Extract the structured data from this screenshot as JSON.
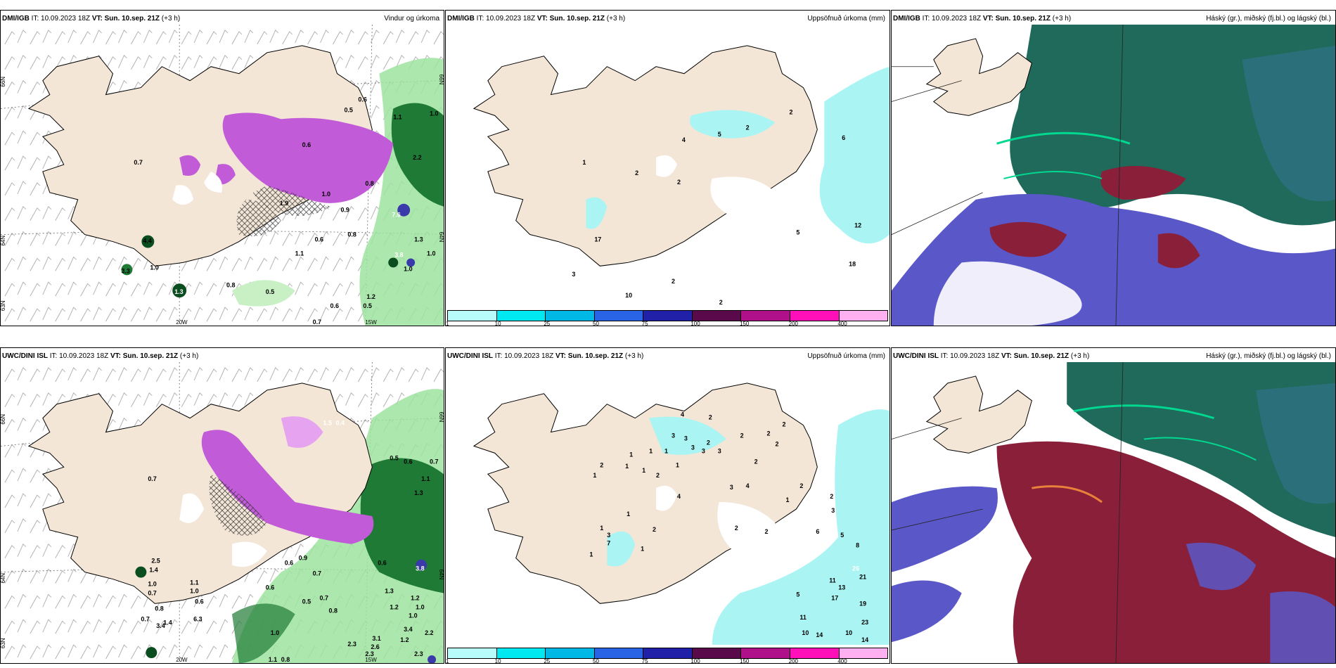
{
  "colors": {
    "land": "#f3e6d6",
    "land_light": "#f7ecdf",
    "precip_light_green": "#c9f0c5",
    "precip_green": "#6fcf78",
    "precip_dark_green": "#0a4d1e",
    "snow_magenta": "#c25bd8",
    "snow_light": "#e6a3f0",
    "accum_cyan": "#aaf5f3",
    "cloud_high_green": "#1f6a5a",
    "cloud_mid_red": "#8a1f3a",
    "cloud_low_blue": "#5a58c8"
  },
  "top_row": {
    "run_prefix": "DMI/IGB",
    "panels": [
      {
        "model": "DMI/IGB",
        "it_label": "IT:",
        "it": "10.09.2023 18Z",
        "vt_label": "VT:",
        "vt": "Sun. 10.sep. 21Z",
        "lead": "(+3 h)",
        "title": "Vindur og úrkoma",
        "lat_labels": [
          "66N",
          "64N",
          "63N"
        ],
        "lat_labels_right": [
          "66N",
          "64N"
        ],
        "lon_labels": [
          "20W",
          "15W"
        ],
        "values": [
          "0.6",
          "0.5",
          "1.1",
          "1.0",
          "0.7",
          "0.6",
          "0.9",
          "0.8",
          "2.2",
          "7.6",
          "1.3",
          "3.8",
          "1.0",
          "0.6",
          "1.2",
          "1.0",
          "4.4",
          "3.3",
          "1.0",
          "0.8",
          "0.5",
          "1.3",
          "0.6",
          "0.5",
          "0.7",
          "1.1",
          "1.0",
          "1.9",
          "0.8"
        ]
      },
      {
        "model": "DMI/IGB",
        "it_label": "IT:",
        "it": "10.09.2023 18Z",
        "vt_label": "VT:",
        "vt": "Sun. 10.sep. 21Z",
        "lead": "(+3 h)",
        "title": "Uppsöfnuð úrkoma (mm)",
        "values": [
          "2",
          "4",
          "5",
          "2",
          "1",
          "2",
          "2",
          "6",
          "17",
          "12",
          "5",
          "18",
          "3",
          "10",
          "2",
          "2"
        ]
      },
      {
        "model": "DMI/IGB",
        "it_label": "IT:",
        "it": "10.09.2023 18Z",
        "vt_label": "VT:",
        "vt": "Sun. 10.sep. 21Z",
        "lead": "(+3 h)",
        "title": "Háský (gr.), miðský (fj.bl.) og lágský (bl.)"
      }
    ]
  },
  "bottom_row": {
    "panels": [
      {
        "model": "UWC/DINI ISL",
        "it_label": "IT:",
        "it": "10.09.2023 18Z",
        "vt_label": "VT:",
        "vt": "Sun. 10.sep. 21Z",
        "lead": "(+3 h)",
        "title": "",
        "lat_labels": [
          "66N",
          "64N",
          "63N"
        ],
        "lat_labels_right": [
          "66N",
          "64N"
        ],
        "lon_labels": [
          "20W",
          "15W"
        ],
        "values": [
          "0.7",
          "1.5",
          "0.4",
          "0.5",
          "0.6",
          "0.7",
          "1.1",
          "1.3",
          "1.0",
          "0.7",
          "1.4",
          "2.5",
          "1.0",
          "1.1",
          "0.6",
          "0.8",
          "0.6",
          "0.5",
          "3.8",
          "1.3",
          "1.2",
          "1.0",
          "0.8",
          "0.7",
          "2.3",
          "3.1",
          "2.6",
          "3.4",
          "1.0",
          "0.8",
          "1.1",
          "2.3",
          "3.4",
          "6.3",
          "0.7",
          "1.2",
          "0.6",
          "0.7",
          "0.9",
          "0.6",
          "1.2",
          "1.0",
          "2.2",
          "1.4",
          "2.3"
        ]
      },
      {
        "model": "UWC/DINI ISL",
        "it_label": "IT:",
        "it": "10.09.2023 18Z",
        "vt_label": "VT:",
        "vt": "Sun. 10.sep. 21Z",
        "lead": "(+3 h)",
        "title": "Uppsöfnuð úrkoma (mm)",
        "values": [
          "4",
          "2",
          "2",
          "3",
          "3",
          "3",
          "2",
          "2",
          "2",
          "1",
          "1",
          "1",
          "2",
          "1",
          "3",
          "3",
          "3",
          "2",
          "1",
          "1",
          "1",
          "2",
          "4",
          "4",
          "3",
          "1",
          "2",
          "1",
          "1",
          "2",
          "3",
          "3",
          "2",
          "2",
          "2",
          "1",
          "7",
          "1",
          "6",
          "5",
          "8",
          "26",
          "21",
          "13",
          "11",
          "17",
          "19",
          "23",
          "14",
          "10",
          "14",
          "5",
          "11",
          "10"
        ]
      },
      {
        "model": "UWC/DINI ISL",
        "it_label": "IT:",
        "it": "10.09.2023 18Z",
        "vt_label": "VT:",
        "vt": "Sun. 10.sep. 21Z",
        "lead": "(+3 h)",
        "title": "Háský (gr.), miðský (fj.bl.) og lágský (bl.)"
      }
    ]
  },
  "colorbar": {
    "ticks": [
      "1",
      "10",
      "25",
      "50",
      "75",
      "100",
      "150",
      "200",
      "400"
    ],
    "colors": [
      "#b8fbfb",
      "#00e8f0",
      "#00b8e6",
      "#2a64e6",
      "#2020a8",
      "#5a0a4a",
      "#b0108a",
      "#ff10b8",
      "#ffb0f0"
    ]
  }
}
